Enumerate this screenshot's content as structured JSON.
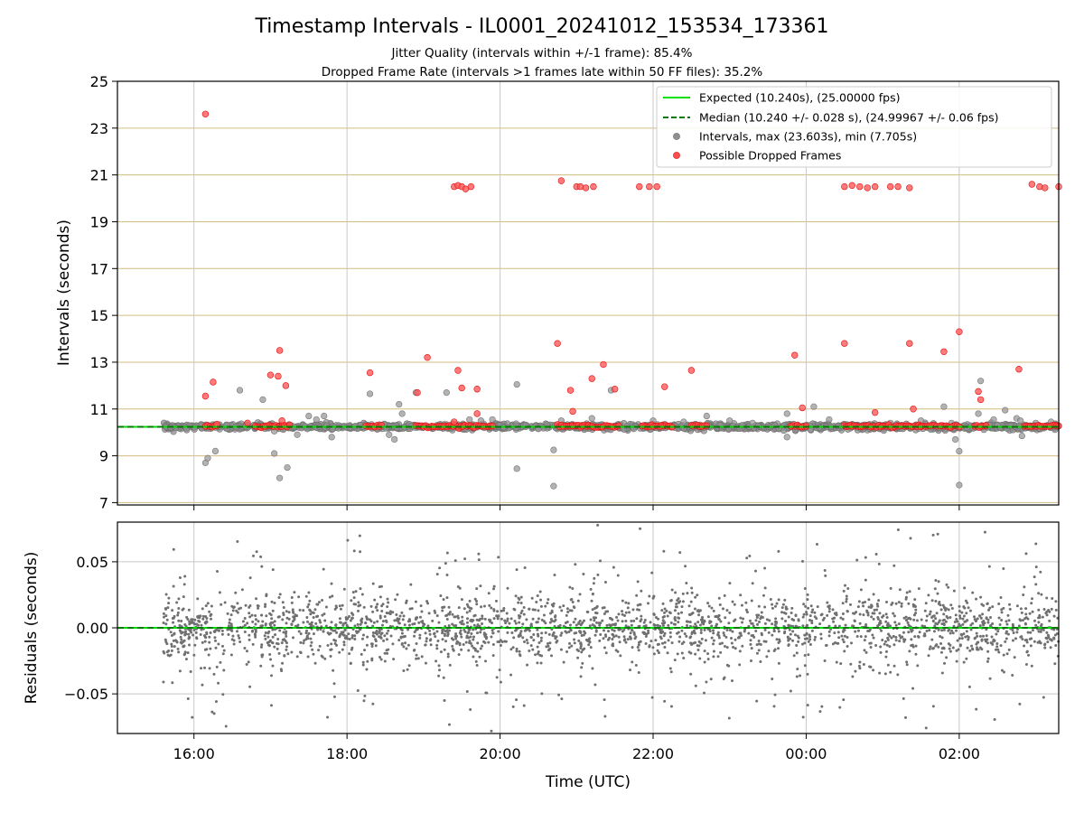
{
  "chart_data": [
    {
      "type": "scatter",
      "panel": "intervals",
      "title": "Timestamp Intervals - IL0001_20241012_153534_173361",
      "subtitle_lines": [
        "Jitter Quality (intervals within +/-1 frame): 85.4%",
        "Dropped Frame Rate (intervals >1 frames late within 50 FF files): 35.2%"
      ],
      "ylabel": "Intervals (seconds)",
      "xlabel": "",
      "xlim": [
        15.0,
        27.3
      ],
      "ylim": [
        6.9,
        25
      ],
      "yticks": [
        7,
        9,
        11,
        13,
        15,
        17,
        19,
        21,
        23,
        25
      ],
      "ytick_labels": [
        "7",
        "9",
        "11",
        "13",
        "15",
        "17",
        "19",
        "21",
        "23",
        "25"
      ],
      "grid": "horizontal lines at y ticks (tan), vertical lines at x ticks (grey)",
      "legend_position": "top-right",
      "legend": [
        {
          "label": "Expected (10.240s), (25.00000 fps)",
          "style": "line",
          "color": "#00e000"
        },
        {
          "label": "Median (10.240 +/- 0.028 s), (24.99967 +/- 0.06 fps)",
          "style": "dashed",
          "color": "#007a00"
        },
        {
          "label": "Intervals, max (23.603s), min (7.705s)",
          "style": "marker",
          "color": "#909090"
        },
        {
          "label": "Possible Dropped Frames",
          "style": "marker",
          "color": "#ff4040"
        }
      ],
      "expected_interval": 10.24,
      "median_interval": 10.24,
      "series": [
        {
          "name": "Intervals, max (23.603s), min (7.705s)",
          "color": "#909090",
          "baseline": {
            "x_start": 15.6,
            "x_end": 27.3,
            "y": 10.24,
            "spread": 0.06
          },
          "points": [
            [
              16.15,
              8.7
            ],
            [
              16.18,
              8.9
            ],
            [
              16.28,
              9.2
            ],
            [
              16.6,
              11.8
            ],
            [
              16.9,
              11.4
            ],
            [
              17.05,
              9.1
            ],
            [
              17.12,
              8.05
            ],
            [
              17.22,
              8.5
            ],
            [
              17.05,
              10.05
            ],
            [
              17.5,
              10.7
            ],
            [
              17.6,
              10.55
            ],
            [
              17.35,
              9.9
            ],
            [
              17.7,
              10.7
            ],
            [
              17.8,
              9.8
            ],
            [
              18.3,
              11.65
            ],
            [
              18.55,
              9.9
            ],
            [
              18.62,
              9.7
            ],
            [
              18.68,
              11.2
            ],
            [
              18.72,
              10.8
            ],
            [
              18.9,
              11.7
            ],
            [
              19.3,
              11.7
            ],
            [
              19.6,
              10.55
            ],
            [
              19.75,
              10.5
            ],
            [
              19.9,
              10.55
            ],
            [
              20.22,
              12.05
            ],
            [
              20.22,
              8.45
            ],
            [
              20.5,
              10.15
            ],
            [
              20.7,
              9.25
            ],
            [
              20.7,
              7.705
            ],
            [
              20.8,
              10.5
            ],
            [
              21.2,
              10.6
            ],
            [
              21.45,
              11.8
            ],
            [
              22.0,
              10.5
            ],
            [
              22.4,
              10.45
            ],
            [
              22.7,
              10.7
            ],
            [
              23.0,
              10.5
            ],
            [
              23.3,
              10.4
            ],
            [
              23.75,
              10.8
            ],
            [
              23.75,
              9.8
            ],
            [
              24.1,
              11.1
            ],
            [
              24.3,
              10.55
            ],
            [
              24.6,
              10.3
            ],
            [
              25.1,
              10.4
            ],
            [
              25.5,
              10.5
            ],
            [
              25.8,
              11.1
            ],
            [
              25.95,
              9.7
            ],
            [
              25.9,
              10.4
            ],
            [
              26.0,
              9.2
            ],
            [
              26.0,
              7.75
            ],
            [
              26.28,
              12.2
            ],
            [
              26.25,
              10.8
            ],
            [
              26.6,
              10.95
            ],
            [
              26.75,
              10.6
            ],
            [
              26.82,
              9.85
            ],
            [
              26.8,
              10.5
            ],
            [
              27.0,
              10.4
            ],
            [
              27.2,
              10.45
            ],
            [
              26.45,
              10.55
            ],
            [
              26.5,
              10.3
            ]
          ]
        },
        {
          "name": "Possible Dropped Frames",
          "color": "#ff4040",
          "clusters": [
            [
              16.15,
              16.3
            ],
            [
              16.8,
              17.15
            ],
            [
              17.15,
              17.25
            ],
            [
              18.25,
              18.45
            ],
            [
              18.9,
              19.9
            ],
            [
              20.75,
              21.0
            ],
            [
              21.0,
              21.55
            ],
            [
              21.85,
              22.25
            ],
            [
              22.5,
              22.7
            ],
            [
              23.8,
              24.0
            ],
            [
              24.5,
              25.0
            ],
            [
              25.0,
              25.5
            ],
            [
              25.5,
              25.7
            ],
            [
              25.75,
              26.0
            ],
            [
              26.2,
              26.35
            ],
            [
              26.85,
              27.3
            ]
          ],
          "cluster_y": 10.27,
          "points": [
            [
              16.15,
              23.6
            ],
            [
              16.15,
              11.55
            ],
            [
              16.25,
              12.15
            ],
            [
              16.3,
              10.35
            ],
            [
              16.7,
              10.4
            ],
            [
              17.0,
              12.45
            ],
            [
              17.1,
              12.4
            ],
            [
              17.12,
              13.5
            ],
            [
              17.2,
              12.0
            ],
            [
              17.15,
              10.5
            ],
            [
              18.3,
              12.55
            ],
            [
              18.92,
              11.7
            ],
            [
              19.05,
              13.2
            ],
            [
              19.4,
              20.5
            ],
            [
              19.45,
              20.55
            ],
            [
              19.5,
              20.5
            ],
            [
              19.55,
              20.4
            ],
            [
              19.62,
              20.5
            ],
            [
              19.45,
              12.65
            ],
            [
              19.5,
              11.9
            ],
            [
              19.7,
              11.85
            ],
            [
              19.7,
              10.8
            ],
            [
              19.4,
              10.45
            ],
            [
              20.75,
              13.8
            ],
            [
              20.8,
              20.75
            ],
            [
              20.92,
              11.8
            ],
            [
              20.95,
              10.9
            ],
            [
              21.0,
              20.5
            ],
            [
              21.05,
              20.5
            ],
            [
              21.12,
              20.45
            ],
            [
              21.22,
              20.5
            ],
            [
              21.2,
              12.3
            ],
            [
              21.35,
              12.9
            ],
            [
              21.5,
              11.85
            ],
            [
              21.82,
              20.5
            ],
            [
              21.95,
              20.5
            ],
            [
              22.05,
              20.5
            ],
            [
              22.15,
              11.95
            ],
            [
              22.5,
              12.65
            ],
            [
              23.85,
              13.3
            ],
            [
              23.95,
              11.05
            ],
            [
              24.5,
              20.5
            ],
            [
              24.6,
              20.55
            ],
            [
              24.7,
              20.5
            ],
            [
              24.8,
              20.45
            ],
            [
              24.9,
              20.5
            ],
            [
              25.1,
              20.5
            ],
            [
              25.2,
              20.5
            ],
            [
              25.35,
              20.45
            ],
            [
              24.5,
              13.8
            ],
            [
              24.9,
              10.85
            ],
            [
              25.35,
              13.8
            ],
            [
              25.4,
              11.0
            ],
            [
              25.8,
              13.45
            ],
            [
              26.0,
              14.3
            ],
            [
              26.28,
              11.4
            ],
            [
              26.25,
              11.75
            ],
            [
              26.78,
              12.7
            ],
            [
              26.95,
              20.6
            ],
            [
              27.05,
              20.5
            ],
            [
              27.12,
              20.45
            ],
            [
              27.3,
              20.5
            ]
          ]
        }
      ]
    },
    {
      "type": "scatter",
      "panel": "residuals",
      "title": "",
      "ylabel": "Residuals (seconds)",
      "xlabel": "Time (UTC)",
      "xlim": [
        15.0,
        27.3
      ],
      "ylim": [
        -0.08,
        0.08
      ],
      "yticks": [
        -0.05,
        0.0,
        0.05
      ],
      "ytick_labels": [
        "−0.05",
        "0.00",
        "0.05"
      ],
      "xticks": [
        16,
        18,
        20,
        22,
        24,
        26
      ],
      "xtick_labels": [
        "16:00",
        "18:00",
        "20:00",
        "22:00",
        "00:00",
        "02:00"
      ],
      "grid": true,
      "zero_line_color": "#00e000",
      "series": [
        {
          "name": "",
          "color": "#707070",
          "x_start": 15.6,
          "x_end": 27.3,
          "count": 2600,
          "core_sigma": 0.012,
          "tail_fraction": 0.18,
          "tail_sigma": 0.045
        }
      ]
    }
  ]
}
